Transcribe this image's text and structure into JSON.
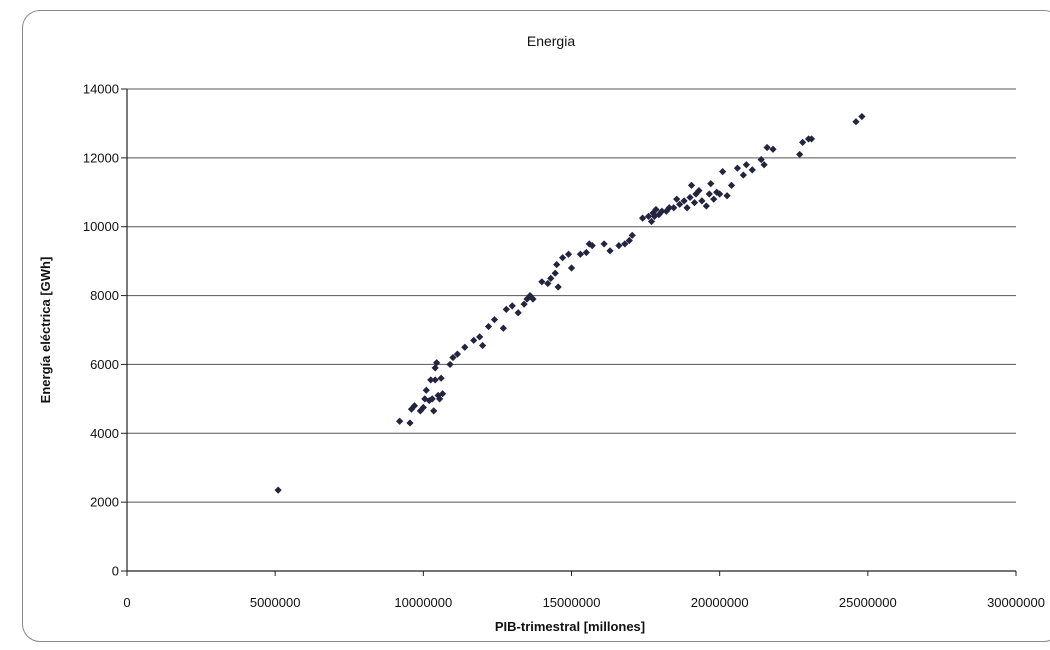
{
  "chart_data": {
    "type": "scatter",
    "title": "Energia",
    "xlabel": "PIB-trimestral [millones]",
    "ylabel": "Energía eléctrica [GWh]",
    "xlim": [
      0,
      30000000
    ],
    "ylim": [
      0,
      14000
    ],
    "x_ticks": [
      "0",
      "5000000",
      "10000000",
      "15000000",
      "20000000",
      "25000000",
      "30000000"
    ],
    "y_ticks": [
      "0",
      "2000",
      "4000",
      "6000",
      "8000",
      "10000",
      "12000",
      "14000"
    ],
    "grid": "horizontal",
    "legend": "none",
    "marker_color": "#23243f",
    "points": [
      [
        9200000,
        4350
      ],
      [
        9550000,
        4300
      ],
      [
        9600000,
        4700
      ],
      [
        9700000,
        4800
      ],
      [
        9900000,
        4650
      ],
      [
        10000000,
        4750
      ],
      [
        10050000,
        5000
      ],
      [
        10100000,
        5250
      ],
      [
        10200000,
        4950
      ],
      [
        10250000,
        5550
      ],
      [
        10300000,
        5000
      ],
      [
        10350000,
        4650
      ],
      [
        10400000,
        5550
      ],
      [
        10400000,
        5900
      ],
      [
        10450000,
        6050
      ],
      [
        10500000,
        5100
      ],
      [
        10550000,
        5000
      ],
      [
        10600000,
        5600
      ],
      [
        10650000,
        5150
      ],
      [
        10900000,
        6000
      ],
      [
        11000000,
        6200
      ],
      [
        11150000,
        6300
      ],
      [
        11400000,
        6500
      ],
      [
        11700000,
        6700
      ],
      [
        11900000,
        6800
      ],
      [
        12000000,
        6550
      ],
      [
        12200000,
        7100
      ],
      [
        12400000,
        7300
      ],
      [
        12700000,
        7050
      ],
      [
        12800000,
        7600
      ],
      [
        13000000,
        7700
      ],
      [
        13200000,
        7500
      ],
      [
        13400000,
        7750
      ],
      [
        13500000,
        7900
      ],
      [
        13600000,
        8000
      ],
      [
        13700000,
        7900
      ],
      [
        14000000,
        8400
      ],
      [
        14200000,
        8350
      ],
      [
        14300000,
        8500
      ],
      [
        14450000,
        8650
      ],
      [
        14500000,
        8900
      ],
      [
        14550000,
        8250
      ],
      [
        14700000,
        9100
      ],
      [
        14900000,
        9200
      ],
      [
        15000000,
        8800
      ],
      [
        15300000,
        9200
      ],
      [
        15500000,
        9250
      ],
      [
        15600000,
        9500
      ],
      [
        15700000,
        9450
      ],
      [
        16100000,
        9500
      ],
      [
        16300000,
        9300
      ],
      [
        16600000,
        9450
      ],
      [
        16800000,
        9500
      ],
      [
        16950000,
        9600
      ],
      [
        17050000,
        9750
      ],
      [
        17400000,
        10250
      ],
      [
        17600000,
        10300
      ],
      [
        17700000,
        10150
      ],
      [
        17750000,
        10400
      ],
      [
        17800000,
        10300
      ],
      [
        17850000,
        10500
      ],
      [
        17950000,
        10350
      ],
      [
        18050000,
        10450
      ],
      [
        18200000,
        10450
      ],
      [
        18300000,
        10550
      ],
      [
        18450000,
        10550
      ],
      [
        18550000,
        10800
      ],
      [
        18650000,
        10650
      ],
      [
        18800000,
        10750
      ],
      [
        18900000,
        10550
      ],
      [
        19000000,
        10850
      ],
      [
        19050000,
        11200
      ],
      [
        19150000,
        10700
      ],
      [
        19200000,
        10950
      ],
      [
        19300000,
        11050
      ],
      [
        19400000,
        10750
      ],
      [
        19550000,
        10600
      ],
      [
        19650000,
        10950
      ],
      [
        19700000,
        11250
      ],
      [
        19800000,
        10800
      ],
      [
        19900000,
        11000
      ],
      [
        20000000,
        10950
      ],
      [
        20100000,
        11600
      ],
      [
        20250000,
        10900
      ],
      [
        20400000,
        11200
      ],
      [
        20600000,
        11700
      ],
      [
        20800000,
        11500
      ],
      [
        20900000,
        11800
      ],
      [
        21100000,
        11650
      ],
      [
        21400000,
        11950
      ],
      [
        21500000,
        11800
      ],
      [
        21600000,
        12300
      ],
      [
        21800000,
        12250
      ],
      [
        22700000,
        12100
      ],
      [
        22800000,
        12450
      ],
      [
        23000000,
        12550
      ],
      [
        23100000,
        12550
      ],
      [
        24600000,
        13050
      ],
      [
        24800000,
        13200
      ],
      [
        5100000,
        2350
      ]
    ]
  }
}
